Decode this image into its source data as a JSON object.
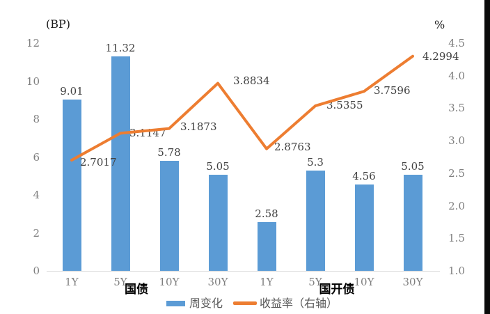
{
  "chart_data": {
    "type": "bar+line",
    "title": "",
    "left_axis": {
      "label": "(BP)",
      "min": 0,
      "max": 12,
      "step": 2,
      "ticks": [
        "12",
        "10",
        "8",
        "6",
        "4",
        "2",
        "0"
      ]
    },
    "right_axis": {
      "label": "%",
      "min": 1.0,
      "max": 4.5,
      "step": 0.5,
      "ticks": [
        "4.5",
        "4.0",
        "3.5",
        "3.0",
        "2.5",
        "2.0",
        "1.5",
        "1.0"
      ]
    },
    "categories": [
      "1Y",
      "5Y",
      "10Y",
      "30Y",
      "1Y",
      "5Y",
      "10Y",
      "30Y"
    ],
    "groups": [
      {
        "label": "国债"
      },
      {
        "label": "国开债"
      }
    ],
    "series": [
      {
        "name": "周变化",
        "type": "bar",
        "axis": "left",
        "color": "#5B9BD5",
        "values": [
          9.01,
          11.32,
          5.78,
          5.05,
          2.58,
          5.3,
          4.56,
          5.05
        ],
        "labels": [
          "9.01",
          "11.32",
          "5.78",
          "5.05",
          "2.58",
          "5.3",
          "4.56",
          "5.05"
        ]
      },
      {
        "name": "收益率（右轴）",
        "type": "line",
        "axis": "right",
        "color": "#ED7D31",
        "values": [
          2.7017,
          3.1147,
          3.1873,
          3.8834,
          2.8763,
          3.5355,
          3.7596,
          4.2994
        ],
        "labels": [
          "2.7017",
          "3.1147",
          "3.1873",
          "3.8834",
          "2.8763",
          "3.5355",
          "3.7596",
          "4.2994"
        ]
      }
    ],
    "legend": [
      {
        "label": "周变化",
        "marker": "bar",
        "color": "#5B9BD5"
      },
      {
        "label": "收益率（右轴）",
        "marker": "line",
        "color": "#ED7D31"
      }
    ],
    "grid": "off",
    "legend_position": "bottom"
  }
}
